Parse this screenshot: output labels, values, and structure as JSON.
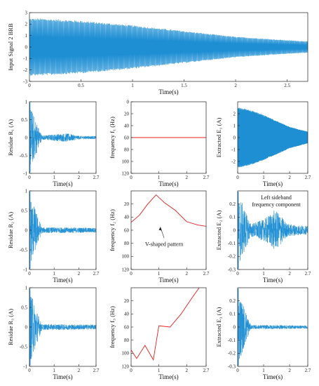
{
  "colors": {
    "signal": "#1f8fd4",
    "frequency": "#e0201c",
    "axis": "#222222",
    "background": "#ffffff"
  },
  "chart_data": [
    {
      "id": "input",
      "type": "line",
      "ylabel": "Input Signal 2 BRB",
      "xlabel": "Time(s)",
      "xlim": [
        0,
        2.7
      ],
      "ylim": [
        -3,
        3
      ],
      "xticks": [
        "0",
        "0.5",
        "1",
        "1.5",
        "2",
        "2.5"
      ],
      "yticks": [
        "3",
        "2",
        "1",
        "0",
        "-1",
        "-2",
        "-3"
      ],
      "series": [
        {
          "values_description_only": false,
          "t": [
            0,
            0.1,
            0.5,
            1.0,
            1.5,
            2.0,
            2.5,
            2.7
          ],
          "amplitude": [
            2.5,
            2.5,
            2.3,
            1.9,
            1.4,
            0.9,
            0.6,
            0.5
          ]
        }
      ]
    },
    {
      "id": "r1",
      "type": "line",
      "ylabel": "Residue R₁ (A)",
      "xlabel": "Time(s)",
      "xlim": [
        0,
        2.7
      ],
      "ylim": [
        -1,
        1
      ],
      "xticks": [
        "0",
        "1",
        "2",
        "2.7"
      ],
      "yticks": [
        "1",
        "0.5",
        "0",
        "-0.5",
        "-1"
      ],
      "series": [
        {
          "t": [
            0,
            0.03,
            0.5,
            1.5,
            2.0,
            2.7
          ],
          "amplitude": [
            1,
            0.9,
            0.06,
            0.12,
            0.05,
            0.04
          ]
        }
      ]
    },
    {
      "id": "f1",
      "type": "line",
      "ylabel": "frequency f₁ (Hz)",
      "xlabel": "Time(s)",
      "xlim": [
        0,
        2.7
      ],
      "ylim": [
        0,
        120
      ],
      "yaxis_reversed": true,
      "xticks": [
        "0",
        "1",
        "2",
        "2.7"
      ],
      "yticks": [
        "0",
        "20",
        "40",
        "60",
        "80",
        "100",
        "120"
      ],
      "series": [
        {
          "x": [
            0,
            2.7
          ],
          "y": [
            60,
            60
          ]
        }
      ]
    },
    {
      "id": "e1",
      "type": "line",
      "ylabel": "Extracted E₁ (A)",
      "xlabel": "Time(s)",
      "xlim": [
        0,
        2.7
      ],
      "ylim": [
        -3,
        3
      ],
      "xticks": [
        "0",
        "1",
        "2",
        "2.7"
      ],
      "yticks": [
        "2",
        "1",
        "0",
        "-1",
        "-2"
      ],
      "series": [
        {
          "t": [
            0,
            0.1,
            0.5,
            1.0,
            1.5,
            2.0,
            2.5,
            2.7
          ],
          "amplitude": [
            2.5,
            2.5,
            2.3,
            1.9,
            1.4,
            0.9,
            0.6,
            0.5
          ]
        }
      ]
    },
    {
      "id": "r2",
      "type": "line",
      "ylabel": "Residue R₂ (A)",
      "xlabel": "Time(s)",
      "xlim": [
        0,
        2.7
      ],
      "ylim": [
        -1,
        1
      ],
      "xticks": [
        "0",
        "1",
        "2",
        "2.7"
      ],
      "yticks": [
        "1",
        "0.5",
        "0",
        "-0.5",
        "-1"
      ],
      "series": [
        {
          "t": [
            0,
            0.03,
            0.5,
            1.5,
            2.7
          ],
          "amplitude": [
            1,
            0.9,
            0.07,
            0.07,
            0.06
          ]
        }
      ]
    },
    {
      "id": "f2",
      "type": "line",
      "ylabel": "frequency f₂ (Hz)",
      "xlabel": "Time(s)",
      "xlim": [
        0,
        2.7
      ],
      "ylim": [
        0,
        120
      ],
      "yaxis_reversed": true,
      "xticks": [
        "0",
        "1",
        "2",
        "2.7"
      ],
      "yticks": [
        "20",
        "40",
        "60",
        "80",
        "100",
        "120"
      ],
      "annotation": "V-shaped pattern",
      "series": [
        {
          "x": [
            0,
            0.3,
            0.6,
            0.9,
            1.2,
            1.6,
            2.0,
            2.4,
            2.7
          ],
          "y": [
            48,
            37,
            20,
            6,
            18,
            30,
            47,
            52,
            54
          ]
        }
      ]
    },
    {
      "id": "e2",
      "type": "line",
      "ylabel": "Extracted E₂ (A)",
      "xlabel": "Time(s)",
      "xlim": [
        0,
        2.7
      ],
      "ylim": [
        -0.3,
        0.3
      ],
      "xticks": [
        "0",
        "1",
        "2",
        "2.7"
      ],
      "yticks": [
        "0.2",
        "0.1",
        "0",
        "-0.1",
        "-0.2",
        "-0.3"
      ],
      "annotation_lines": [
        "Left sideband",
        "frequency component"
      ],
      "series": [
        {
          "t": [
            0,
            0.03,
            0.5,
            1.0,
            1.4,
            1.6,
            1.9,
            2.3,
            2.7
          ],
          "amplitude": [
            0.3,
            0.28,
            0.05,
            0.08,
            0.15,
            0.13,
            0.05,
            0.04,
            0.03
          ]
        }
      ]
    },
    {
      "id": "r3",
      "type": "line",
      "ylabel": "Residue R₃ (A)",
      "xlabel": "Time(s)",
      "xlim": [
        0,
        2.7
      ],
      "ylim": [
        -1,
        1
      ],
      "xticks": [
        "0",
        "1",
        "2",
        "2.7"
      ],
      "yticks": [
        "1",
        "0.5",
        "0",
        "-0.5",
        "-1"
      ],
      "series": [
        {
          "t": [
            0,
            0.03,
            0.5,
            1.5,
            2.7
          ],
          "amplitude": [
            1,
            0.9,
            0.07,
            0.07,
            0.06
          ]
        }
      ]
    },
    {
      "id": "f3",
      "type": "line",
      "ylabel": "frequency f₃ (Hz)",
      "xlabel": "Time(s)",
      "xlim": [
        0,
        2.7
      ],
      "ylim": [
        0,
        120
      ],
      "yaxis_reversed": true,
      "xticks": [
        "0",
        "1",
        "2",
        "2.7"
      ],
      "yticks": [
        "20",
        "40",
        "60",
        "80",
        "100",
        "120"
      ],
      "series": [
        {
          "x": [
            0,
            0.2,
            0.5,
            0.8,
            1.0,
            1.4,
            1.8,
            2.2,
            2.45
          ],
          "y": [
            95,
            108,
            88,
            110,
            58,
            60,
            40,
            15,
            0
          ]
        }
      ]
    },
    {
      "id": "e3",
      "type": "line",
      "ylabel": "Extracted E₃ (A)",
      "xlabel": "Time(s)",
      "xlim": [
        0,
        2.7
      ],
      "ylim": [
        -0.3,
        0.3
      ],
      "xticks": [
        "0",
        "1",
        "2",
        "2.7"
      ],
      "yticks": [
        "0.2",
        "0.1",
        "0",
        "-0.1",
        "-0.2",
        "-0.3"
      ],
      "series": [
        {
          "t": [
            0,
            0.03,
            0.5,
            1.5,
            2.7
          ],
          "amplitude": [
            0.3,
            0.28,
            0.015,
            0.015,
            0.012
          ]
        }
      ]
    }
  ]
}
